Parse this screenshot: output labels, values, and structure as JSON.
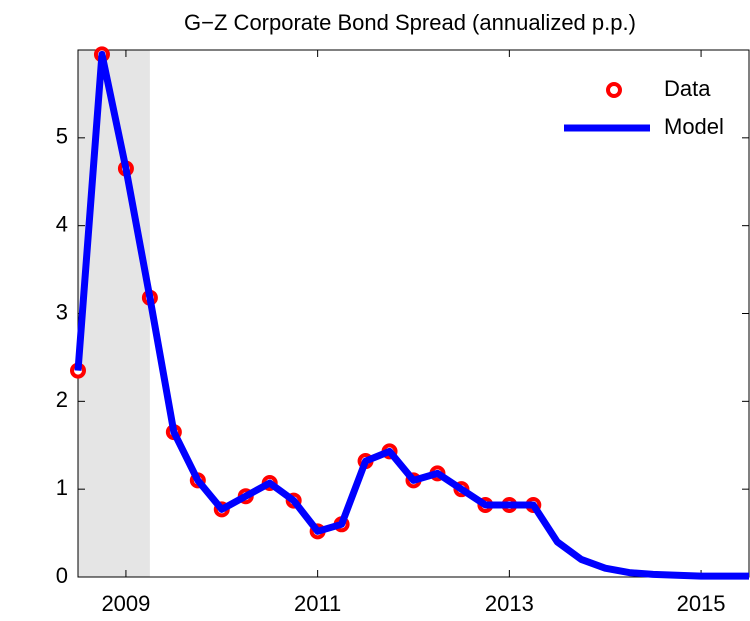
{
  "chart_data": {
    "type": "line",
    "title": "G−Z Corporate Bond Spread (annualized p.p.)",
    "x": [
      2008.5,
      2008.75,
      2009,
      2009.25,
      2009.5,
      2009.75,
      2010,
      2010.25,
      2010.5,
      2010.75,
      2011,
      2011.25,
      2011.5,
      2011.75,
      2012,
      2012.25,
      2012.5,
      2012.75,
      2013,
      2013.25,
      2013.5,
      2013.75,
      2014,
      2014.25,
      2014.5,
      2014.75,
      2015,
      2015.25,
      2015.5
    ],
    "series": [
      {
        "name": "Data",
        "color": "#ff0000",
        "marker": "circle",
        "values": [
          2.35,
          5.95,
          4.65,
          3.18,
          1.65,
          1.1,
          0.77,
          0.92,
          1.07,
          0.87,
          0.52,
          0.6,
          1.32,
          1.43,
          1.1,
          1.18,
          1.0,
          0.82,
          0.82,
          0.82,
          null,
          null,
          null,
          null,
          null,
          null,
          null,
          null,
          null
        ]
      },
      {
        "name": "Model",
        "color": "#0000ff",
        "marker": "line",
        "values": [
          2.35,
          5.95,
          4.65,
          3.18,
          1.65,
          1.1,
          0.77,
          0.92,
          1.07,
          0.87,
          0.52,
          0.6,
          1.32,
          1.43,
          1.1,
          1.18,
          1.0,
          0.82,
          0.82,
          0.82,
          0.4,
          0.2,
          0.1,
          0.05,
          0.03,
          0.02,
          0.01,
          0.01,
          0.01
        ]
      }
    ],
    "xlim": [
      2008.5,
      2015.5
    ],
    "xticks": [
      2009,
      2011,
      2013,
      2015
    ],
    "ylim": [
      0,
      6
    ],
    "yticks": [
      0,
      1,
      2,
      3,
      4,
      5
    ],
    "shaded_region": [
      2008.5,
      2009.25
    ],
    "legend": "top-right",
    "grid": false
  }
}
